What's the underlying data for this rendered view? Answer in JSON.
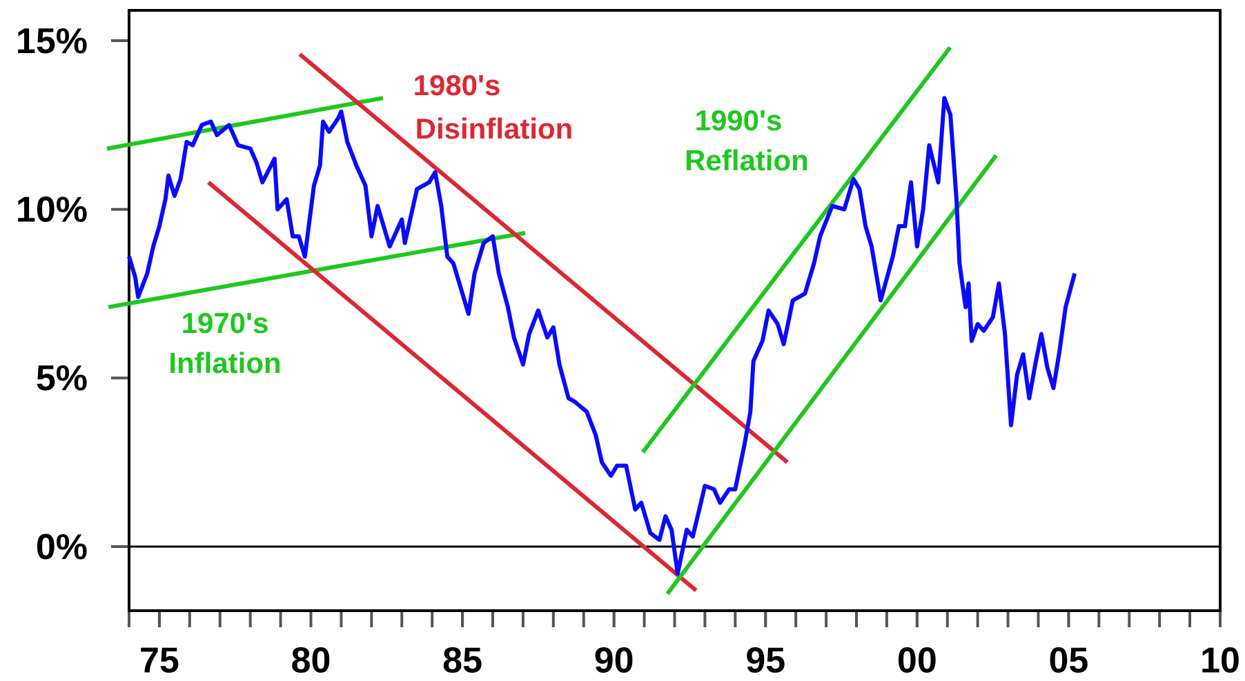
{
  "chart_data": {
    "type": "line",
    "xlim": [
      1974,
      2010
    ],
    "ylim": [
      -1.9,
      15.9
    ],
    "xticks": [
      {
        "value": 1975,
        "label": "75"
      },
      {
        "value": 1980,
        "label": "80"
      },
      {
        "value": 1985,
        "label": "85"
      },
      {
        "value": 1990,
        "label": "90"
      },
      {
        "value": 1995,
        "label": "95"
      },
      {
        "value": 2000,
        "label": "00"
      },
      {
        "value": 2005,
        "label": "05"
      },
      {
        "value": 2010,
        "label": "10"
      }
    ],
    "xminorticks": [
      1974,
      1975,
      1976,
      1977,
      1978,
      1979,
      1980,
      1981,
      1982,
      1983,
      1984,
      1985,
      1986,
      1987,
      1988,
      1989,
      1990,
      1991,
      1992,
      1993,
      1994,
      1995,
      1996,
      1997,
      1998,
      1999,
      2000,
      2001,
      2002,
      2003,
      2004,
      2005,
      2006,
      2007,
      2008,
      2009,
      2010
    ],
    "yticks": [
      {
        "value": 0,
        "label": "0%"
      },
      {
        "value": 5,
        "label": "5%"
      },
      {
        "value": 10,
        "label": "10%"
      },
      {
        "value": 15,
        "label": "15%"
      }
    ],
    "zero_line": true,
    "series": [
      {
        "color": "#0a0aff",
        "x": [
          1974.0,
          1974.2,
          1974.3,
          1974.6,
          1974.8,
          1975.0,
          1975.2,
          1975.3,
          1975.5,
          1975.7,
          1975.9,
          1976.1,
          1976.4,
          1976.7,
          1976.9,
          1977.3,
          1977.6,
          1978.0,
          1978.2,
          1978.4,
          1978.8,
          1978.9,
          1979.2,
          1979.4,
          1979.6,
          1979.8,
          1980.1,
          1980.3,
          1980.4,
          1980.6,
          1980.9,
          1981.0,
          1981.2,
          1981.5,
          1981.8,
          1982.0,
          1982.2,
          1982.4,
          1982.6,
          1983.0,
          1983.1,
          1983.5,
          1983.9,
          1984.1,
          1984.3,
          1984.5,
          1984.7,
          1985.0,
          1985.2,
          1985.4,
          1985.7,
          1986.0,
          1986.2,
          1986.5,
          1986.7,
          1987.0,
          1987.2,
          1987.5,
          1987.8,
          1988.0,
          1988.2,
          1988.5,
          1988.7,
          1989.1,
          1989.4,
          1989.6,
          1989.9,
          1990.1,
          1990.4,
          1990.7,
          1990.9,
          1991.2,
          1991.5,
          1991.7,
          1991.9,
          1992.1,
          1992.4,
          1992.6,
          1993.0,
          1993.3,
          1993.5,
          1993.8,
          1994.0,
          1994.3,
          1994.5,
          1994.6,
          1994.9,
          1995.1,
          1995.4,
          1995.6,
          1995.9,
          1996.3,
          1996.6,
          1996.8,
          1997.2,
          1997.6,
          1997.9,
          1998.1,
          1998.3,
          1998.5,
          1998.8,
          1999.2,
          1999.4,
          1999.6,
          1999.8,
          2000.0,
          2000.2,
          2000.4,
          2000.7,
          2000.9,
          2001.1,
          2001.3,
          2001.4,
          2001.6,
          2001.7,
          2001.8,
          2002.0,
          2002.2,
          2002.5,
          2002.7,
          2002.9,
          2003.1,
          2003.3,
          2003.5,
          2003.7,
          2003.9,
          2004.1,
          2004.3,
          2004.5,
          2004.7,
          2004.9,
          2005.2
        ],
        "values": [
          8.6,
          8.0,
          7.4,
          8.1,
          8.9,
          9.5,
          10.3,
          11.0,
          10.4,
          10.9,
          12.0,
          11.9,
          12.5,
          12.6,
          12.2,
          12.5,
          11.9,
          11.8,
          11.4,
          10.8,
          11.5,
          10.0,
          10.3,
          9.2,
          9.2,
          8.6,
          10.7,
          11.3,
          12.6,
          12.3,
          12.7,
          12.9,
          12.0,
          11.3,
          10.7,
          9.2,
          10.1,
          9.5,
          8.9,
          9.7,
          9.0,
          10.6,
          10.8,
          11.1,
          10.1,
          8.6,
          8.4,
          7.5,
          6.9,
          8.1,
          9.0,
          9.2,
          8.1,
          7.1,
          6.2,
          5.4,
          6.3,
          7.0,
          6.2,
          6.5,
          5.4,
          4.4,
          4.3,
          4.0,
          3.3,
          2.5,
          2.1,
          2.4,
          2.4,
          1.1,
          1.3,
          0.4,
          0.2,
          0.9,
          0.5,
          -0.8,
          0.5,
          0.3,
          1.8,
          1.7,
          1.3,
          1.7,
          1.7,
          3.0,
          4.0,
          5.5,
          6.1,
          7.0,
          6.6,
          6.0,
          7.3,
          7.5,
          8.4,
          9.2,
          10.1,
          10.0,
          10.9,
          10.6,
          9.5,
          8.9,
          7.3,
          8.6,
          9.5,
          9.5,
          10.8,
          8.9,
          10.0,
          11.9,
          10.8,
          13.3,
          12.8,
          10.3,
          8.4,
          7.1,
          7.8,
          6.1,
          6.6,
          6.4,
          6.8,
          7.8,
          6.3,
          3.6,
          5.1,
          5.7,
          4.4,
          5.4,
          6.3,
          5.3,
          4.7,
          5.8,
          7.1,
          8.1
        ]
      }
    ],
    "trend_lines": [
      {
        "color": "#1ec81e",
        "x": [
          1973.27,
          1982.38
        ],
        "y": [
          11.8,
          13.3
        ]
      },
      {
        "color": "#1ec81e",
        "x": [
          1973.32,
          1987.07
        ],
        "y": [
          7.1,
          9.3
        ]
      },
      {
        "color": "#dc2832",
        "x": [
          1979.63,
          1995.72
        ],
        "y": [
          14.6,
          2.5
        ]
      },
      {
        "color": "#dc2832",
        "x": [
          1976.62,
          1992.71
        ],
        "y": [
          10.8,
          -1.3
        ]
      },
      {
        "color": "#1ec81e",
        "x": [
          1990.95,
          2001.09
        ],
        "y": [
          2.8,
          14.8
        ]
      },
      {
        "color": "#1ec81e",
        "x": [
          1991.76,
          2002.61
        ],
        "y": [
          -1.4,
          11.6
        ]
      }
    ],
    "annotations": [
      {
        "color": "#1ec81e",
        "lines": [
          "1970's",
          "Inflation"
        ]
      },
      {
        "color": "#dc2832",
        "lines": [
          "1980's",
          "Disinflation"
        ]
      },
      {
        "color": "#1ec81e",
        "lines": [
          "1990's",
          "Reflation"
        ]
      }
    ]
  }
}
